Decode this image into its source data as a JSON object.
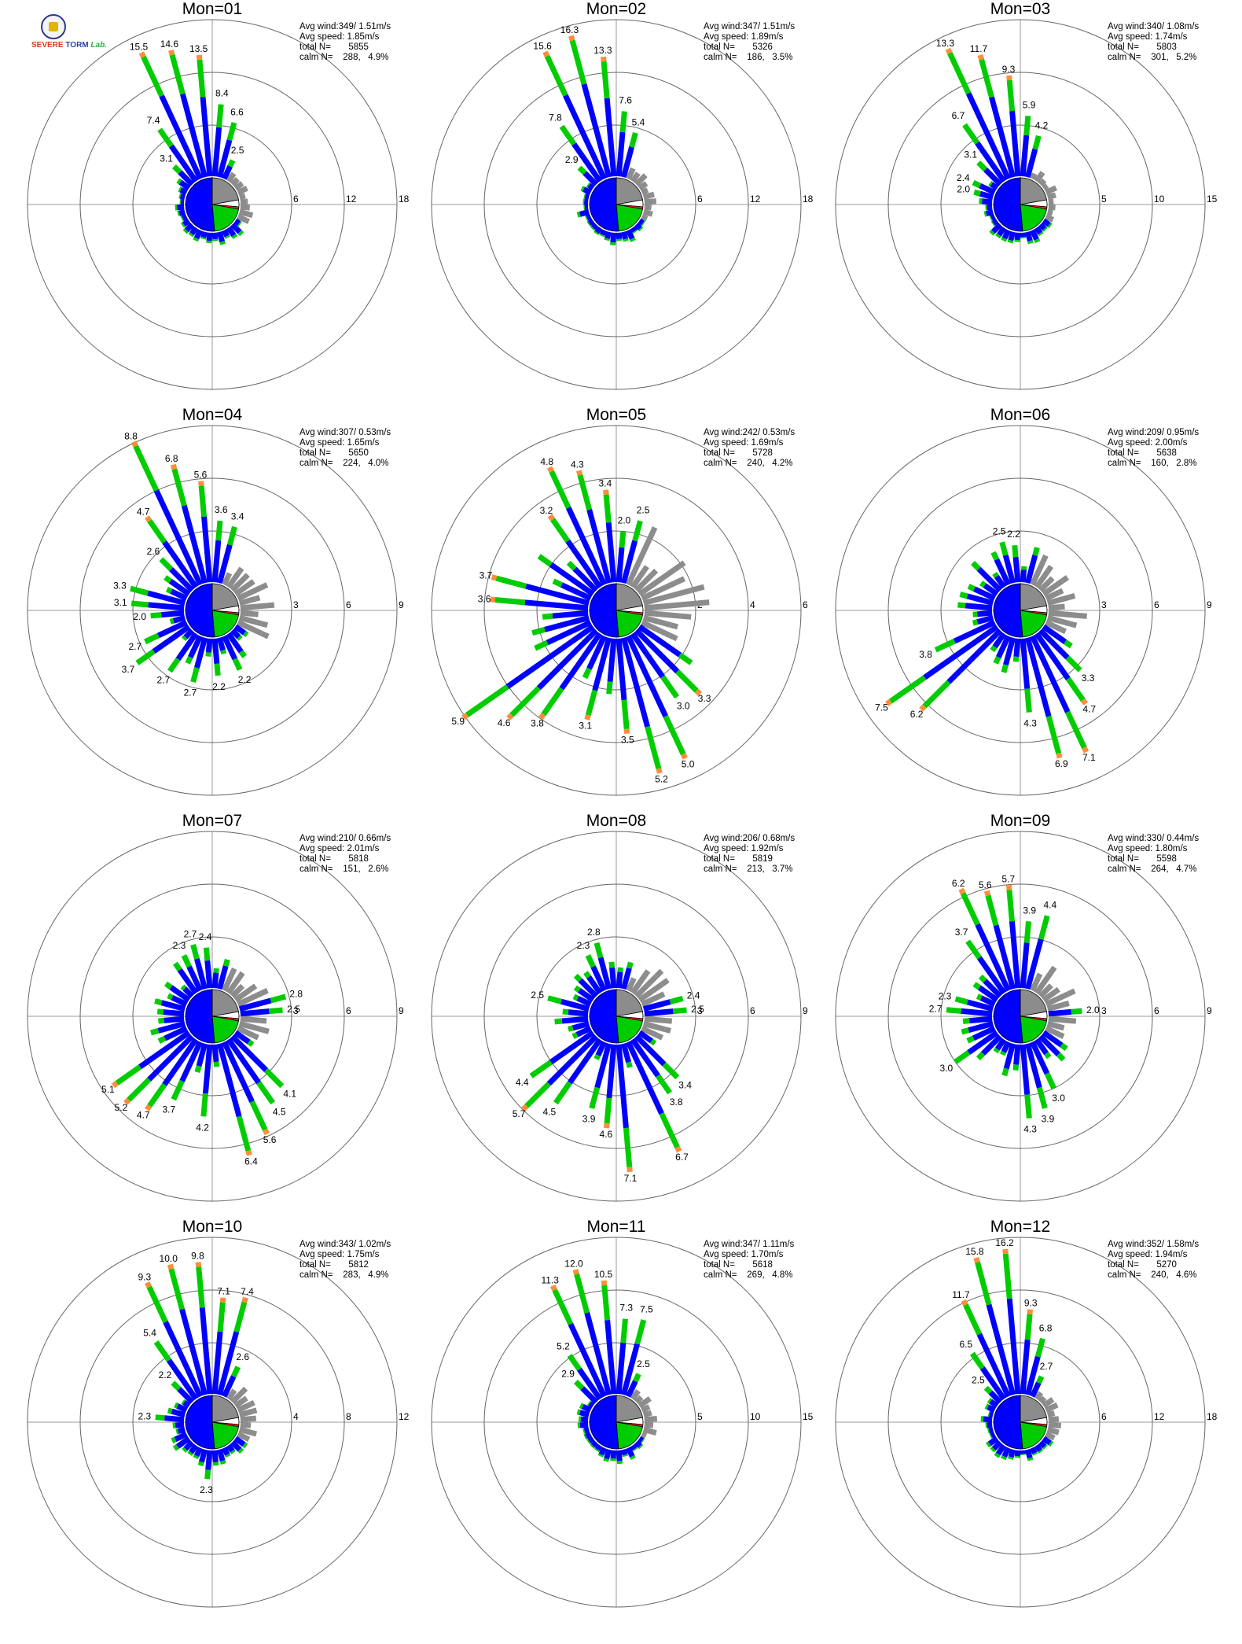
{
  "logo": {
    "line1_prefix": "S",
    "line1": "EVERE",
    "line2": "TORM",
    "lab": "Lab."
  },
  "colors": {
    "blue": "#0000ff",
    "green": "#00cc00",
    "orange": "#ff8c3a",
    "red": "#ff2020",
    "calm_gray": "#8c8c8c",
    "ring": "#999999"
  },
  "stats_labels": {
    "avg_wind": "Avg wind:",
    "avg_speed": "Avg speed:",
    "total": "total N=",
    "calm": "calm N="
  },
  "chart_data": [
    {
      "type": "polar_bar",
      "title": "Mon=01",
      "avg_wind": "349/ 1.51m/s",
      "avg_speed": "1.85m/s",
      "total_n": "5855",
      "calm_n": "288,   4.9%",
      "rings": [
        6,
        12,
        18
      ],
      "ring_labels": [
        "6",
        "12",
        "18"
      ],
      "rmax": 18,
      "calm_split": [
        45,
        60
      ],
      "labeled_bars": [
        {
          "dir": 335,
          "value": 15.5
        },
        {
          "dir": 345,
          "value": 14.6
        },
        {
          "dir": 355,
          "value": 13.5
        },
        {
          "dir": 5,
          "value": 8.4
        },
        {
          "dir": 15,
          "value": 6.6
        },
        {
          "dir": 325,
          "value": 7.4
        },
        {
          "dir": 315,
          "value": 3.1
        },
        {
          "dir": 25,
          "value": 2.5
        }
      ],
      "base_level": 1.2
    },
    {
      "type": "polar_bar",
      "title": "Mon=02",
      "avg_wind": "347/ 1.51m/s",
      "avg_speed": "1.89m/s",
      "total_n": "5326",
      "calm_n": "186,   3.5%",
      "rings": [
        6,
        12,
        18
      ],
      "ring_labels": [
        "6",
        "12",
        "18"
      ],
      "rmax": 18,
      "calm_split": [
        55,
        55
      ],
      "labeled_bars": [
        {
          "dir": 335,
          "value": 15.6
        },
        {
          "dir": 345,
          "value": 16.3
        },
        {
          "dir": 355,
          "value": 13.3
        },
        {
          "dir": 5,
          "value": 7.6
        },
        {
          "dir": 15,
          "value": 5.4
        },
        {
          "dir": 325,
          "value": 7.8
        },
        {
          "dir": 315,
          "value": 2.9
        }
      ],
      "base_level": 1.2
    },
    {
      "type": "polar_bar",
      "title": "Mon=03",
      "avg_wind": "340/ 1.08m/s",
      "avg_speed": "1.74m/s",
      "total_n": "5803",
      "calm_n": "301,   5.2%",
      "rings": [
        5,
        10,
        15
      ],
      "ring_labels": [
        "5",
        "10",
        "15"
      ],
      "rmax": 15,
      "calm_split": [
        40,
        60
      ],
      "labeled_bars": [
        {
          "dir": 335,
          "value": 13.3
        },
        {
          "dir": 345,
          "value": 11.7
        },
        {
          "dir": 355,
          "value": 9.3
        },
        {
          "dir": 5,
          "value": 5.9
        },
        {
          "dir": 15,
          "value": 4.2
        },
        {
          "dir": 325,
          "value": 6.7
        },
        {
          "dir": 315,
          "value": 3.1
        },
        {
          "dir": 295,
          "value": 2.4
        },
        {
          "dir": 285,
          "value": 2.0
        }
      ],
      "base_level": 1.0
    },
    {
      "type": "polar_bar",
      "title": "Mon=04",
      "avg_wind": "307/ 0.53m/s",
      "avg_speed": "1.65m/s",
      "total_n": "5650",
      "calm_n": "224,   4.0%",
      "rings": [
        3,
        6,
        9
      ],
      "ring_labels": [
        "3",
        "6",
        "9"
      ],
      "rmax": 9,
      "calm_split": [
        30,
        50
      ],
      "labeled_bars": [
        {
          "dir": 335,
          "value": 8.8
        },
        {
          "dir": 345,
          "value": 6.8
        },
        {
          "dir": 355,
          "value": 5.6
        },
        {
          "dir": 5,
          "value": 3.6
        },
        {
          "dir": 15,
          "value": 3.4
        },
        {
          "dir": 325,
          "value": 4.7
        },
        {
          "dir": 315,
          "value": 2.6
        },
        {
          "dir": 285,
          "value": 3.3
        },
        {
          "dir": 275,
          "value": 3.1
        },
        {
          "dir": 265,
          "value": 2.0
        },
        {
          "dir": 245,
          "value": 2.7
        },
        {
          "dir": 235,
          "value": 3.7
        },
        {
          "dir": 215,
          "value": 2.7
        },
        {
          "dir": 195,
          "value": 2.7
        },
        {
          "dir": 175,
          "value": 2.2
        },
        {
          "dir": 155,
          "value": 2.2
        }
      ],
      "base_level": 1.4
    },
    {
      "type": "polar_bar",
      "title": "Mon=05",
      "avg_wind": "242/ 0.53m/s",
      "avg_speed": "1.69m/s",
      "total_n": "5728",
      "calm_n": "240,   4.2%",
      "rings": [
        2,
        4,
        6
      ],
      "ring_labels": [
        "2",
        "4",
        "6"
      ],
      "rmax": 6,
      "calm_split": [
        40,
        55
      ],
      "labeled_bars": [
        {
          "dir": 335,
          "value": 4.8
        },
        {
          "dir": 345,
          "value": 4.3
        },
        {
          "dir": 355,
          "value": 3.4
        },
        {
          "dir": 5,
          "value": 2.0
        },
        {
          "dir": 15,
          "value": 2.5
        },
        {
          "dir": 325,
          "value": 3.2
        },
        {
          "dir": 285,
          "value": 3.7
        },
        {
          "dir": 275,
          "value": 3.6
        },
        {
          "dir": 235,
          "value": 5.9
        },
        {
          "dir": 225,
          "value": 4.6
        },
        {
          "dir": 215,
          "value": 3.8
        },
        {
          "dir": 195,
          "value": 3.1
        },
        {
          "dir": 175,
          "value": 3.5
        },
        {
          "dir": 165,
          "value": 5.2
        },
        {
          "dir": 155,
          "value": 5.0
        },
        {
          "dir": 145,
          "value": 3.0
        },
        {
          "dir": 135,
          "value": 3.3
        }
      ],
      "base_level": 1.8
    },
    {
      "type": "polar_bar",
      "title": "Mon=06",
      "avg_wind": "209/ 0.95m/s",
      "avg_speed": "2.00m/s",
      "total_n": "5638",
      "calm_n": "160,   2.8%",
      "rings": [
        3,
        6,
        9
      ],
      "ring_labels": [
        "3",
        "6",
        "9"
      ],
      "rmax": 9,
      "calm_split": [
        35,
        60
      ],
      "labeled_bars": [
        {
          "dir": 345,
          "value": 2.5
        },
        {
          "dir": 355,
          "value": 2.2
        },
        {
          "dir": 235,
          "value": 7.5
        },
        {
          "dir": 225,
          "value": 6.2
        },
        {
          "dir": 245,
          "value": 3.8
        },
        {
          "dir": 175,
          "value": 4.3
        },
        {
          "dir": 165,
          "value": 6.9
        },
        {
          "dir": 155,
          "value": 7.1
        },
        {
          "dir": 145,
          "value": 4.7
        },
        {
          "dir": 135,
          "value": 3.3
        }
      ],
      "base_level": 1.6
    },
    {
      "type": "polar_bar",
      "title": "Mon=07",
      "avg_wind": "210/ 0.66m/s",
      "avg_speed": "2.01m/s",
      "total_n": "5818",
      "calm_n": "151,   2.6%",
      "rings": [
        3,
        6,
        9
      ],
      "ring_labels": [
        "3",
        "6",
        "9"
      ],
      "rmax": 9,
      "calm_split": [
        40,
        55
      ],
      "labeled_bars": [
        {
          "dir": 345,
          "value": 2.7
        },
        {
          "dir": 355,
          "value": 2.4
        },
        {
          "dir": 335,
          "value": 2.3
        },
        {
          "dir": 75,
          "value": 2.8
        },
        {
          "dir": 85,
          "value": 2.5
        },
        {
          "dir": 235,
          "value": 5.1
        },
        {
          "dir": 225,
          "value": 5.2
        },
        {
          "dir": 215,
          "value": 4.7
        },
        {
          "dir": 205,
          "value": 3.7
        },
        {
          "dir": 185,
          "value": 4.2
        },
        {
          "dir": 165,
          "value": 6.4
        },
        {
          "dir": 155,
          "value": 5.6
        },
        {
          "dir": 145,
          "value": 4.5
        },
        {
          "dir": 135,
          "value": 4.1
        }
      ],
      "base_level": 1.5
    },
    {
      "type": "polar_bar",
      "title": "Mon=08",
      "avg_wind": "206/ 0.68m/s",
      "avg_speed": "1.92m/s",
      "total_n": "5819",
      "calm_n": "213,   3.7%",
      "rings": [
        3,
        6,
        9
      ],
      "ring_labels": [
        "3",
        "6",
        "9"
      ],
      "rmax": 9,
      "calm_split": [
        40,
        55
      ],
      "labeled_bars": [
        {
          "dir": 345,
          "value": 2.8
        },
        {
          "dir": 335,
          "value": 2.3
        },
        {
          "dir": 75,
          "value": 2.4
        },
        {
          "dir": 85,
          "value": 2.5
        },
        {
          "dir": 285,
          "value": 2.5
        },
        {
          "dir": 235,
          "value": 4.4
        },
        {
          "dir": 225,
          "value": 5.7
        },
        {
          "dir": 215,
          "value": 4.5
        },
        {
          "dir": 195,
          "value": 3.9
        },
        {
          "dir": 185,
          "value": 4.6
        },
        {
          "dir": 175,
          "value": 7.1
        },
        {
          "dir": 155,
          "value": 6.7
        },
        {
          "dir": 145,
          "value": 3.8
        },
        {
          "dir": 135,
          "value": 3.4
        }
      ],
      "base_level": 1.5
    },
    {
      "type": "polar_bar",
      "title": "Mon=09",
      "avg_wind": "330/ 0.44m/s",
      "avg_speed": "1.80m/s",
      "total_n": "5598",
      "calm_n": "264,   4.7%",
      "rings": [
        3,
        6,
        9
      ],
      "ring_labels": [
        "3",
        "6",
        "9"
      ],
      "rmax": 9,
      "calm_split": [
        30,
        50
      ],
      "labeled_bars": [
        {
          "dir": 335,
          "value": 6.2
        },
        {
          "dir": 345,
          "value": 5.6
        },
        {
          "dir": 355,
          "value": 5.7
        },
        {
          "dir": 5,
          "value": 3.9
        },
        {
          "dir": 15,
          "value": 4.4
        },
        {
          "dir": 325,
          "value": 3.7
        },
        {
          "dir": 85,
          "value": 2.0
        },
        {
          "dir": 275,
          "value": 2.7
        },
        {
          "dir": 285,
          "value": 2.3
        },
        {
          "dir": 235,
          "value": 3.0
        },
        {
          "dir": 175,
          "value": 4.3
        },
        {
          "dir": 165,
          "value": 3.9
        },
        {
          "dir": 155,
          "value": 3.0
        }
      ],
      "base_level": 1.4
    },
    {
      "type": "polar_bar",
      "title": "Mon=10",
      "avg_wind": "343/ 1.02m/s",
      "avg_speed": "1.75m/s",
      "total_n": "5812",
      "calm_n": "283,   4.9%",
      "rings": [
        4,
        8,
        12
      ],
      "ring_labels": [
        "4",
        "8",
        "12"
      ],
      "rmax": 12,
      "calm_split": [
        40,
        60
      ],
      "labeled_bars": [
        {
          "dir": 335,
          "value": 9.3
        },
        {
          "dir": 345,
          "value": 10.0
        },
        {
          "dir": 355,
          "value": 9.8
        },
        {
          "dir": 5,
          "value": 7.1
        },
        {
          "dir": 15,
          "value": 7.4
        },
        {
          "dir": 325,
          "value": 5.4
        },
        {
          "dir": 315,
          "value": 2.2
        },
        {
          "dir": 25,
          "value": 2.6
        },
        {
          "dir": 275,
          "value": 2.3
        },
        {
          "dir": 185,
          "value": 2.3
        }
      ],
      "base_level": 1.1
    },
    {
      "type": "polar_bar",
      "title": "Mon=11",
      "avg_wind": "347/ 1.11m/s",
      "avg_speed": "1.70m/s",
      "total_n": "5618",
      "calm_n": "269,   4.8%",
      "rings": [
        5,
        10,
        15
      ],
      "ring_labels": [
        "5",
        "10",
        "15"
      ],
      "rmax": 15,
      "calm_split": [
        45,
        55
      ],
      "labeled_bars": [
        {
          "dir": 335,
          "value": 11.3
        },
        {
          "dir": 345,
          "value": 12.0
        },
        {
          "dir": 355,
          "value": 10.5
        },
        {
          "dir": 5,
          "value": 7.3
        },
        {
          "dir": 15,
          "value": 7.5
        },
        {
          "dir": 325,
          "value": 5.2
        },
        {
          "dir": 315,
          "value": 2.9
        },
        {
          "dir": 25,
          "value": 2.5
        }
      ],
      "base_level": 1.0
    },
    {
      "type": "polar_bar",
      "title": "Mon=12",
      "avg_wind": "352/ 1.58m/s",
      "avg_speed": "1.94m/s",
      "total_n": "5270",
      "calm_n": "240,   4.6%",
      "rings": [
        6,
        12,
        18
      ],
      "ring_labels": [
        "6",
        "12",
        "18"
      ],
      "rmax": 18,
      "calm_split": [
        45,
        55
      ],
      "labeled_bars": [
        {
          "dir": 345,
          "value": 15.8
        },
        {
          "dir": 355,
          "value": 16.2
        },
        {
          "dir": 335,
          "value": 11.7
        },
        {
          "dir": 5,
          "value": 9.3
        },
        {
          "dir": 15,
          "value": 6.8
        },
        {
          "dir": 325,
          "value": 6.5
        },
        {
          "dir": 315,
          "value": 2.5
        },
        {
          "dir": 25,
          "value": 2.7
        }
      ],
      "base_level": 1.2
    }
  ]
}
